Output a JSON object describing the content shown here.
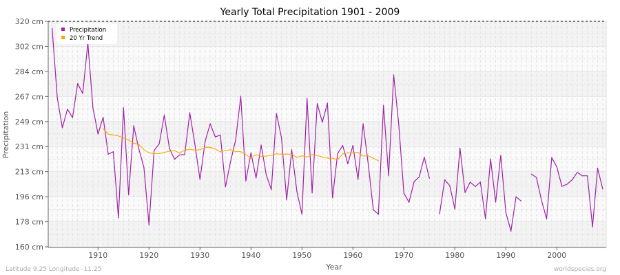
{
  "chart_data": {
    "type": "line",
    "title": "Yearly Total Precipitation 1901 - 2009",
    "xlabel": "Year",
    "ylabel": "Precipitation",
    "xlim": [
      1901,
      2009
    ],
    "ylim": [
      160,
      320
    ],
    "y_ticks": [
      "160 cm",
      "178 cm",
      "196 cm",
      "213 cm",
      "231 cm",
      "249 cm",
      "267 cm",
      "284 cm",
      "302 cm",
      "320 cm"
    ],
    "x_ticks": [
      1910,
      1920,
      1930,
      1940,
      1950,
      1960,
      1970,
      1980,
      1990,
      2000
    ],
    "grid": true,
    "legend_position": "top-left",
    "series": [
      {
        "name": "Precipitation",
        "color": "#a020a8",
        "start_year": 1901,
        "values": [
          314.8,
          266,
          244.5,
          257.6,
          251.7,
          275.8,
          268.8,
          304.7,
          258.7,
          240,
          251.9,
          225.7,
          227.5,
          180.6,
          258.7,
          196.9,
          245.9,
          229.4,
          216.4,
          175.5,
          228.3,
          233,
          253.5,
          229.9,
          222.1,
          225.2,
          225.4,
          255.1,
          232.7,
          207.8,
          234.7,
          247.3,
          238,
          239.2,
          202.6,
          220.5,
          235.9,
          266.8,
          206.7,
          226.7,
          208.8,
          232.2,
          211,
          200.6,
          254.6,
          237.1,
          193.3,
          228.9,
          199.4,
          183.1,
          265.4,
          198.2,
          261.6,
          248.4,
          262,
          194.8,
          226.2,
          231.9,
          218.9,
          231.9,
          207.8,
          247.3,
          218.9,
          186.3,
          183.1,
          260.3,
          210.4,
          282,
          246.5,
          198,
          191.6,
          206.2,
          209.6,
          223.6,
          208.6,
          null,
          183.4,
          207.5,
          203.4,
          186.8,
          230.1,
          198.5,
          205.9,
          202.8,
          205.9,
          179.9,
          222.3,
          191.7,
          224.9,
          184.4,
          171.1,
          195.5,
          192.5,
          null,
          211.6,
          209.1,
          192.9,
          179.9,
          223.3,
          216.7,
          202.9,
          204.4,
          207.5,
          212.8,
          210.4,
          210.4,
          174.1,
          215.8,
          201
        ]
      },
      {
        "name": "20 Yr Trend",
        "color": "#ffa500",
        "start_year": 1911,
        "values": [
          243.8,
          240,
          239.3,
          238.7,
          237.2,
          235.8,
          233.5,
          232.7,
          228.9,
          226.7,
          226.2,
          226.2,
          227,
          227.8,
          228.3,
          226.5,
          228.6,
          229.3,
          228.6,
          228.9,
          230.6,
          230.6,
          229.4,
          227.3,
          228.3,
          228.9,
          227.5,
          227.5,
          225.4,
          222.9,
          225.4,
          224.1,
          224.4,
          224.9,
          226,
          225.7,
          225.8,
          225.7,
          223.4,
          224.6,
          223.7,
          225.4,
          224.9,
          223.7,
          222.9,
          222.9,
          221.8,
          226,
          226.7,
          226.7,
          227,
          224.4,
          224.6,
          222.9,
          221
        ]
      }
    ]
  },
  "footer": {
    "left": "Latitude 9.25 Longitude -11.25",
    "right": "worldspecies.org"
  }
}
